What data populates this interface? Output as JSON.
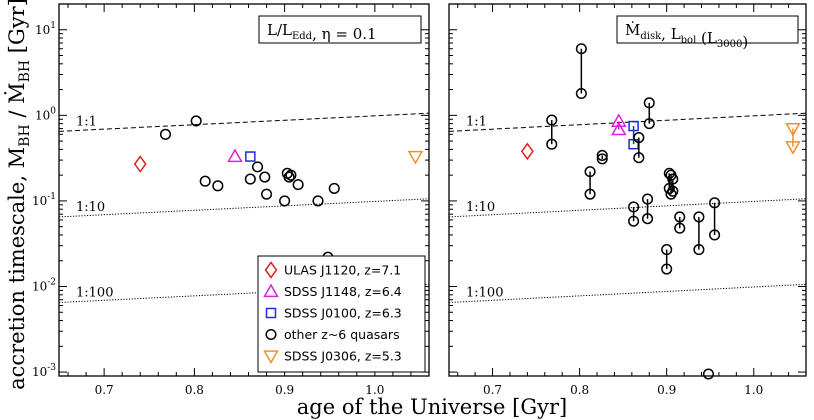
{
  "ylabel_text": "accretion timescale, M",
  "ylabel_sub1": "BH",
  "ylabel_mid": " / Ṁ",
  "ylabel_sub2": "BH",
  "ylabel_unit": " [Gyr]",
  "xlabel": "age of the Universe [Gyr]",
  "colors": {
    "ulas": "#e0201b",
    "j1148": "#e020e0",
    "j0100": "#1b2ed8",
    "other": "#000000",
    "j0306": "#f09030"
  },
  "chart_data": [
    {
      "type": "scatter",
      "panel": "left",
      "title": "L/L_Edd, η = 0.1",
      "title_parts": {
        "a": "L/L",
        "a_sub": "Edd",
        "b": ", η = 0.1"
      },
      "xlim": [
        0.65,
        1.06
      ],
      "ylim": [
        0.0009,
        20
      ],
      "yscale": "log",
      "xticks": [
        "0.7",
        "0.8",
        "0.9",
        "1.0"
      ],
      "xtick_values": [
        0.7,
        0.8,
        0.9,
        1.0
      ],
      "yticks": [
        "10⁻³",
        "10⁻²",
        "10⁻¹",
        "10⁰",
        "10¹"
      ],
      "ytick_exponents": [
        "-3",
        "-2",
        "-1",
        "0",
        "1"
      ],
      "ytick_values": [
        0.001,
        0.01,
        0.1,
        1,
        10
      ],
      "reference_lines": [
        {
          "label": "1:1",
          "style": "dashed",
          "y_at": [
            [
              0.65,
              0.65
            ],
            [
              1.06,
              1.06
            ]
          ]
        },
        {
          "label": "1:10",
          "style": "dotted",
          "y_at": [
            [
              0.65,
              0.065
            ],
            [
              1.06,
              0.106
            ]
          ]
        },
        {
          "label": "1:100",
          "style": "dotted",
          "y_at": [
            [
              0.65,
              0.0065
            ],
            [
              1.06,
              0.0106
            ]
          ]
        }
      ],
      "series": [
        {
          "name": "ULAS J1120, z=7.1",
          "marker": "diamond",
          "color": "#e0201b",
          "points": [
            [
              0.74,
              0.27
            ]
          ]
        },
        {
          "name": "SDSS J1148, z=6.4",
          "marker": "triangle-up",
          "color": "#e020e0",
          "points": [
            [
              0.845,
              0.33
            ]
          ]
        },
        {
          "name": "SDSS J0100, z=6.3",
          "marker": "square",
          "color": "#1b2ed8",
          "points": [
            [
              0.862,
              0.33
            ]
          ]
        },
        {
          "name": "other z~6 quasars",
          "marker": "circle",
          "color": "#000000",
          "points": [
            [
              0.768,
              0.6
            ],
            [
              0.802,
              0.86
            ],
            [
              0.812,
              0.17
            ],
            [
              0.826,
              0.15
            ],
            [
              0.862,
              0.18
            ],
            [
              0.87,
              0.25
            ],
            [
              0.878,
              0.19
            ],
            [
              0.88,
              0.12
            ],
            [
              0.9,
              0.1
            ],
            [
              0.903,
              0.21
            ],
            [
              0.905,
              0.19
            ],
            [
              0.907,
              0.2
            ],
            [
              0.915,
              0.155
            ],
            [
              0.937,
              0.1
            ],
            [
              0.948,
              0.022
            ],
            [
              0.955,
              0.14
            ]
          ]
        },
        {
          "name": "SDSS J0306, z=5.3",
          "marker": "triangle-down",
          "color": "#f09030",
          "points": [
            [
              1.045,
              0.33
            ]
          ]
        }
      ],
      "legend": {
        "position": "bottom-right",
        "entries": [
          "ULAS J1120, z=7.1",
          "SDSS J1148, z=6.4",
          "SDSS J0100, z=6.3",
          "other z~6 quasars",
          "SDSS J0306, z=5.3"
        ]
      }
    },
    {
      "type": "scatter",
      "panel": "right",
      "title": "Ṁ_disk, L_bol (L_3000)",
      "title_parts": {
        "a": "Ṁ",
        "a_sub": "disk",
        "b": ", L",
        "b_sub": "bol",
        "c": " (L",
        "c_sub": "3000",
        "d": ")"
      },
      "xlim": [
        0.65,
        1.06
      ],
      "ylim": [
        0.0009,
        20
      ],
      "yscale": "log",
      "xticks": [
        "0.7",
        "0.8",
        "0.9",
        "1.0"
      ],
      "xtick_values": [
        0.7,
        0.8,
        0.9,
        1.0
      ],
      "reference_lines": [
        {
          "label": "1:1",
          "style": "dashed",
          "y_at": [
            [
              0.65,
              0.65
            ],
            [
              1.06,
              1.06
            ]
          ]
        },
        {
          "label": "1:10",
          "style": "dotted",
          "y_at": [
            [
              0.65,
              0.065
            ],
            [
              1.06,
              0.106
            ]
          ]
        },
        {
          "label": "1:100",
          "style": "dotted",
          "y_at": [
            [
              0.65,
              0.0065
            ],
            [
              1.06,
              0.0106
            ]
          ]
        }
      ],
      "series": [
        {
          "name": "ULAS J1120, z=7.1",
          "marker": "diamond",
          "color": "#e0201b",
          "pairs": [
            [
              0.74,
              0.38,
              0.38
            ]
          ]
        },
        {
          "name": "SDSS J1148, z=6.4",
          "marker": "triangle-up",
          "color": "#e020e0",
          "pairs": [
            [
              0.845,
              0.85,
              0.68
            ]
          ]
        },
        {
          "name": "SDSS J0100, z=6.3",
          "marker": "square",
          "color": "#1b2ed8",
          "pairs": [
            [
              0.862,
              0.75,
              0.46
            ]
          ]
        },
        {
          "name": "other z~6 quasars",
          "marker": "circle",
          "color": "#000000",
          "pairs": [
            [
              0.768,
              0.88,
              0.46
            ],
            [
              0.802,
              6.0,
              1.8
            ],
            [
              0.812,
              0.22,
              0.12
            ],
            [
              0.826,
              0.34,
              0.31
            ],
            [
              0.862,
              0.085,
              0.058
            ],
            [
              0.868,
              0.55,
              0.32
            ],
            [
              0.878,
              0.105,
              0.062
            ],
            [
              0.88,
              1.4,
              0.8
            ],
            [
              0.9,
              0.027,
              0.016
            ],
            [
              0.903,
              0.21,
              0.14
            ],
            [
              0.905,
              0.2,
              0.12
            ],
            [
              0.907,
              0.18,
              0.13
            ],
            [
              0.915,
              0.065,
              0.048
            ],
            [
              0.937,
              0.065,
              0.027
            ],
            [
              0.948,
              0.00095,
              0.00095
            ],
            [
              0.955,
              0.095,
              0.04
            ]
          ]
        },
        {
          "name": "SDSS J0306, z=5.3",
          "marker": "triangle-down",
          "color": "#f09030",
          "pairs": [
            [
              1.045,
              0.7,
              0.43
            ]
          ]
        }
      ]
    }
  ]
}
